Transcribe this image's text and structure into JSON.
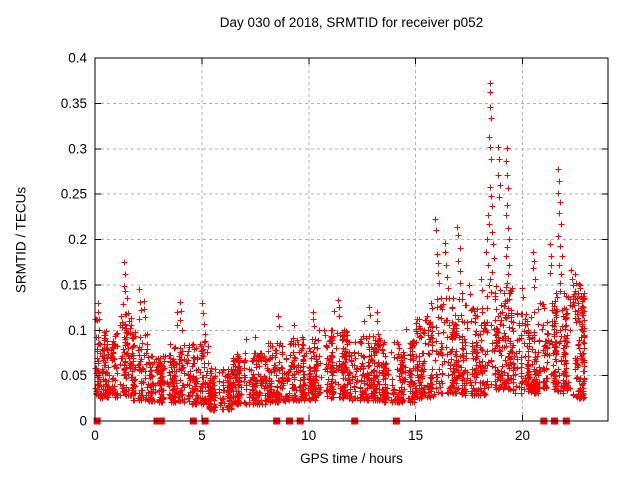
{
  "page": {
    "background": "#ffffff"
  },
  "chart_data": {
    "type": "scatter",
    "title": "Day 030 of 2018, SRMTID for receiver p052",
    "xlabel": "GPS time / hours",
    "ylabel": "SRMTID / TECUs",
    "xlim": [
      0,
      24
    ],
    "ylim": [
      0,
      0.4
    ],
    "xticks": [
      0,
      5,
      10,
      15,
      20
    ],
    "xtick_labels": [
      "0",
      "5",
      "10",
      "15",
      "20"
    ],
    "yticks": [
      0,
      0.05,
      0.1,
      0.15,
      0.2,
      0.25,
      0.3,
      0.35,
      0.4
    ],
    "ytick_labels": [
      "0",
      "0.05",
      "0.1",
      "0.15",
      "0.2",
      "0.25",
      "0.3",
      "0.35",
      "0.4"
    ],
    "grid": true,
    "legend": "none",
    "colors": {
      "marker": "#ff0000",
      "grid": "#b0b0b0",
      "axis": "#000000",
      "text": "#000000",
      "background": "#ffffff"
    },
    "series": [
      {
        "name": "srmtid-values",
        "marker": "plus",
        "color": "#ff0000",
        "band_profile_format": [
          "t_start_h",
          "t_end_h",
          "n_points",
          "y_min_TECU",
          "y_max_TECU"
        ],
        "band_profile": [
          [
            0.0,
            0.3,
            45,
            0.028,
            0.125
          ],
          [
            0.3,
            1.2,
            110,
            0.025,
            0.1
          ],
          [
            1.2,
            1.8,
            85,
            0.028,
            0.12
          ],
          [
            1.8,
            2.6,
            90,
            0.022,
            0.1
          ],
          [
            2.6,
            3.6,
            110,
            0.02,
            0.072
          ],
          [
            3.6,
            4.5,
            110,
            0.02,
            0.085
          ],
          [
            4.5,
            5.3,
            100,
            0.018,
            0.088
          ],
          [
            5.3,
            6.4,
            130,
            0.012,
            0.058
          ],
          [
            6.4,
            8.0,
            200,
            0.018,
            0.075
          ],
          [
            8.0,
            9.0,
            120,
            0.02,
            0.088
          ],
          [
            9.0,
            10.5,
            180,
            0.022,
            0.092
          ],
          [
            10.5,
            12.0,
            180,
            0.025,
            0.1
          ],
          [
            12.0,
            13.5,
            180,
            0.022,
            0.095
          ],
          [
            13.5,
            15.0,
            170,
            0.02,
            0.088
          ],
          [
            15.0,
            16.0,
            120,
            0.025,
            0.115
          ],
          [
            16.0,
            17.2,
            150,
            0.03,
            0.138
          ],
          [
            17.2,
            18.3,
            130,
            0.028,
            0.128
          ],
          [
            18.3,
            19.5,
            150,
            0.035,
            0.148
          ],
          [
            19.5,
            20.8,
            150,
            0.03,
            0.122
          ],
          [
            20.8,
            21.6,
            100,
            0.035,
            0.132
          ],
          [
            21.6,
            22.2,
            90,
            0.03,
            0.142
          ],
          [
            22.2,
            22.9,
            110,
            0.025,
            0.155
          ]
        ],
        "peak_points": [
          [
            0.15,
            0.13
          ],
          [
            0.18,
            0.12
          ],
          [
            0.22,
            0.112
          ],
          [
            1.38,
            0.175
          ],
          [
            1.42,
            0.161
          ],
          [
            1.4,
            0.148
          ],
          [
            1.45,
            0.143
          ],
          [
            1.5,
            0.135
          ],
          [
            1.35,
            0.128
          ],
          [
            1.55,
            0.118
          ],
          [
            1.6,
            0.11
          ],
          [
            1.42,
            0.105
          ],
          [
            2.1,
            0.145
          ],
          [
            2.12,
            0.131
          ],
          [
            2.18,
            0.122
          ],
          [
            2.1,
            0.112
          ],
          [
            2.3,
            0.132
          ],
          [
            2.32,
            0.123
          ],
          [
            2.35,
            0.114
          ],
          [
            3.85,
            0.12
          ],
          [
            3.88,
            0.105
          ],
          [
            4.0,
            0.131
          ],
          [
            4.05,
            0.121
          ],
          [
            4.02,
            0.111
          ],
          [
            4.1,
            0.1
          ],
          [
            5.05,
            0.13
          ],
          [
            5.08,
            0.118
          ],
          [
            5.1,
            0.106
          ],
          [
            5.15,
            0.095
          ],
          [
            7.1,
            0.09
          ],
          [
            7.5,
            0.092
          ],
          [
            8.6,
            0.115
          ],
          [
            8.62,
            0.104
          ],
          [
            9.35,
            0.105
          ],
          [
            10.2,
            0.12
          ],
          [
            10.22,
            0.112
          ],
          [
            10.28,
            0.104
          ],
          [
            11.2,
            0.121
          ],
          [
            11.4,
            0.133
          ],
          [
            11.42,
            0.125
          ],
          [
            11.45,
            0.115
          ],
          [
            12.6,
            0.11
          ],
          [
            12.85,
            0.125
          ],
          [
            12.88,
            0.116
          ],
          [
            13.2,
            0.12
          ],
          [
            13.22,
            0.11
          ],
          [
            14.55,
            0.101
          ],
          [
            15.55,
            0.115
          ],
          [
            15.75,
            0.13
          ],
          [
            15.78,
            0.124
          ],
          [
            15.95,
            0.222
          ],
          [
            15.98,
            0.21
          ],
          [
            16.0,
            0.183
          ],
          [
            16.05,
            0.174
          ],
          [
            16.08,
            0.162
          ],
          [
            16.12,
            0.152
          ],
          [
            16.4,
            0.196
          ],
          [
            16.42,
            0.186
          ],
          [
            16.45,
            0.171
          ],
          [
            16.5,
            0.158
          ],
          [
            16.55,
            0.146
          ],
          [
            16.45,
            0.135
          ],
          [
            16.98,
            0.213
          ],
          [
            17.02,
            0.204
          ],
          [
            17.08,
            0.19
          ],
          [
            17.0,
            0.176
          ],
          [
            17.12,
            0.165
          ],
          [
            17.1,
            0.152
          ],
          [
            17.18,
            0.141
          ],
          [
            17.5,
            0.149
          ],
          [
            17.55,
            0.139
          ],
          [
            18.1,
            0.156
          ],
          [
            18.12,
            0.144
          ],
          [
            18.48,
            0.372
          ],
          [
            18.52,
            0.362
          ],
          [
            18.5,
            0.345
          ],
          [
            18.54,
            0.333
          ],
          [
            18.46,
            0.312
          ],
          [
            18.5,
            0.301
          ],
          [
            18.55,
            0.288
          ],
          [
            18.5,
            0.257
          ],
          [
            18.56,
            0.247
          ],
          [
            18.6,
            0.236
          ],
          [
            18.42,
            0.226
          ],
          [
            18.46,
            0.216
          ],
          [
            18.6,
            0.208
          ],
          [
            18.36,
            0.2
          ],
          [
            18.64,
            0.194
          ],
          [
            18.32,
            0.186
          ],
          [
            18.68,
            0.179
          ],
          [
            18.4,
            0.171
          ],
          [
            18.6,
            0.164
          ],
          [
            18.5,
            0.156
          ],
          [
            18.45,
            0.149
          ],
          [
            18.55,
            0.142
          ],
          [
            18.9,
            0.301
          ],
          [
            18.94,
            0.288
          ],
          [
            18.9,
            0.27
          ],
          [
            18.98,
            0.259
          ],
          [
            18.92,
            0.246
          ],
          [
            19.28,
            0.3
          ],
          [
            19.25,
            0.286
          ],
          [
            19.3,
            0.271
          ],
          [
            19.34,
            0.256
          ],
          [
            19.3,
            0.237
          ],
          [
            19.26,
            0.226
          ],
          [
            19.34,
            0.212
          ],
          [
            19.38,
            0.2
          ],
          [
            19.3,
            0.191
          ],
          [
            19.26,
            0.181
          ],
          [
            19.4,
            0.171
          ],
          [
            19.34,
            0.161
          ],
          [
            19.3,
            0.151
          ],
          [
            19.44,
            0.144
          ],
          [
            20.0,
            0.146
          ],
          [
            20.04,
            0.136
          ],
          [
            20.5,
            0.186
          ],
          [
            20.54,
            0.176
          ],
          [
            20.5,
            0.168
          ],
          [
            20.6,
            0.156
          ],
          [
            20.56,
            0.147
          ],
          [
            21.3,
            0.194
          ],
          [
            21.34,
            0.181
          ],
          [
            21.38,
            0.171
          ],
          [
            21.32,
            0.162
          ],
          [
            21.7,
            0.277
          ],
          [
            21.74,
            0.264
          ],
          [
            21.7,
            0.251
          ],
          [
            21.78,
            0.241
          ],
          [
            21.74,
            0.229
          ],
          [
            21.84,
            0.216
          ],
          [
            21.7,
            0.203
          ],
          [
            21.78,
            0.192
          ],
          [
            21.88,
            0.181
          ],
          [
            21.74,
            0.171
          ],
          [
            21.84,
            0.161
          ],
          [
            21.8,
            0.151
          ],
          [
            21.76,
            0.143
          ],
          [
            22.3,
            0.166
          ],
          [
            22.34,
            0.156
          ],
          [
            22.4,
            0.149
          ],
          [
            22.5,
            0.161
          ],
          [
            22.54,
            0.151
          ],
          [
            22.6,
            0.141
          ],
          [
            22.46,
            0.134
          ],
          [
            22.64,
            0.129
          ],
          [
            22.7,
            0.146
          ],
          [
            22.74,
            0.136
          ],
          [
            22.8,
            0.126
          ],
          [
            22.84,
            0.116
          ]
        ]
      },
      {
        "name": "baseline-flags",
        "marker": "filled-square",
        "color": "#ff0000",
        "value": 0,
        "hours": [
          0.1,
          2.9,
          3.1,
          4.6,
          5.15,
          8.5,
          9.1,
          9.6,
          12.15,
          14.1,
          21.0,
          21.5,
          22.05
        ]
      }
    ]
  }
}
